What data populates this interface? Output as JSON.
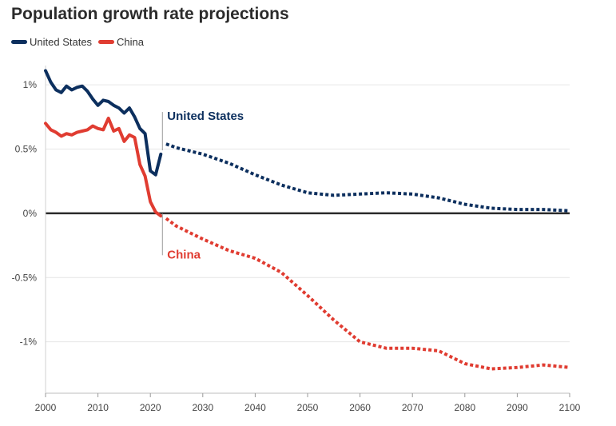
{
  "chart_data": {
    "type": "line",
    "title": "Population growth rate projections",
    "xlabel": "",
    "ylabel": "",
    "xlim": [
      2000,
      2100
    ],
    "ylim": [
      -1.4,
      1.15
    ],
    "x_ticks": [
      2000,
      2010,
      2020,
      2030,
      2040,
      2050,
      2060,
      2070,
      2080,
      2090,
      2100
    ],
    "x_tick_labels": [
      "2000",
      "2010",
      "2020",
      "2030",
      "2040",
      "2050",
      "2060",
      "2070",
      "2080",
      "2090",
      "2100"
    ],
    "y_ticks": [
      1,
      0.5,
      0,
      -0.5,
      -1
    ],
    "y_tick_labels": [
      "1%",
      "0.5%",
      "0%",
      "-0.5%",
      "-1%"
    ],
    "grid": "horizontal",
    "legend_position": "top-left",
    "series": [
      {
        "name": "United States",
        "color": "#0c2f5e",
        "historical": [
          [
            2000,
            1.11
          ],
          [
            2001,
            1.02
          ],
          [
            2002,
            0.96
          ],
          [
            2003,
            0.94
          ],
          [
            2004,
            0.99
          ],
          [
            2005,
            0.96
          ],
          [
            2006,
            0.98
          ],
          [
            2007,
            0.99
          ],
          [
            2008,
            0.95
          ],
          [
            2009,
            0.89
          ],
          [
            2010,
            0.84
          ],
          [
            2011,
            0.88
          ],
          [
            2012,
            0.87
          ],
          [
            2013,
            0.84
          ],
          [
            2014,
            0.82
          ],
          [
            2015,
            0.78
          ],
          [
            2016,
            0.82
          ],
          [
            2017,
            0.75
          ],
          [
            2018,
            0.66
          ],
          [
            2019,
            0.62
          ],
          [
            2020,
            0.33
          ],
          [
            2021,
            0.3
          ],
          [
            2022,
            0.46
          ]
        ],
        "projection": [
          [
            2023,
            0.54
          ],
          [
            2025,
            0.51
          ],
          [
            2030,
            0.46
          ],
          [
            2035,
            0.39
          ],
          [
            2040,
            0.3
          ],
          [
            2045,
            0.22
          ],
          [
            2050,
            0.16
          ],
          [
            2055,
            0.14
          ],
          [
            2060,
            0.15
          ],
          [
            2065,
            0.16
          ],
          [
            2070,
            0.15
          ],
          [
            2075,
            0.12
          ],
          [
            2080,
            0.07
          ],
          [
            2085,
            0.04
          ],
          [
            2090,
            0.03
          ],
          [
            2095,
            0.03
          ],
          [
            2100,
            0.02
          ]
        ]
      },
      {
        "name": "China",
        "color": "#e03c31",
        "historical": [
          [
            2000,
            0.7
          ],
          [
            2001,
            0.65
          ],
          [
            2002,
            0.63
          ],
          [
            2003,
            0.6
          ],
          [
            2004,
            0.62
          ],
          [
            2005,
            0.61
          ],
          [
            2006,
            0.63
          ],
          [
            2007,
            0.64
          ],
          [
            2008,
            0.65
          ],
          [
            2009,
            0.68
          ],
          [
            2010,
            0.66
          ],
          [
            2011,
            0.65
          ],
          [
            2012,
            0.74
          ],
          [
            2013,
            0.64
          ],
          [
            2014,
            0.66
          ],
          [
            2015,
            0.56
          ],
          [
            2016,
            0.61
          ],
          [
            2017,
            0.59
          ],
          [
            2018,
            0.38
          ],
          [
            2019,
            0.29
          ],
          [
            2020,
            0.09
          ],
          [
            2021,
            0.01
          ],
          [
            2022,
            -0.02
          ]
        ],
        "projection": [
          [
            2023,
            -0.04
          ],
          [
            2025,
            -0.1
          ],
          [
            2030,
            -0.2
          ],
          [
            2035,
            -0.29
          ],
          [
            2040,
            -0.35
          ],
          [
            2045,
            -0.46
          ],
          [
            2050,
            -0.64
          ],
          [
            2055,
            -0.83
          ],
          [
            2060,
            -1.0
          ],
          [
            2065,
            -1.05
          ],
          [
            2070,
            -1.05
          ],
          [
            2075,
            -1.07
          ],
          [
            2080,
            -1.17
          ],
          [
            2085,
            -1.21
          ],
          [
            2090,
            -1.2
          ],
          [
            2095,
            -1.18
          ],
          [
            2100,
            -1.2
          ]
        ]
      }
    ],
    "annotations": [
      {
        "text": "United States",
        "series": "United States",
        "at": [
          2022.3,
          0.54
        ]
      },
      {
        "text": "China",
        "series": "China",
        "at": [
          2022.3,
          -0.04
        ]
      }
    ]
  }
}
